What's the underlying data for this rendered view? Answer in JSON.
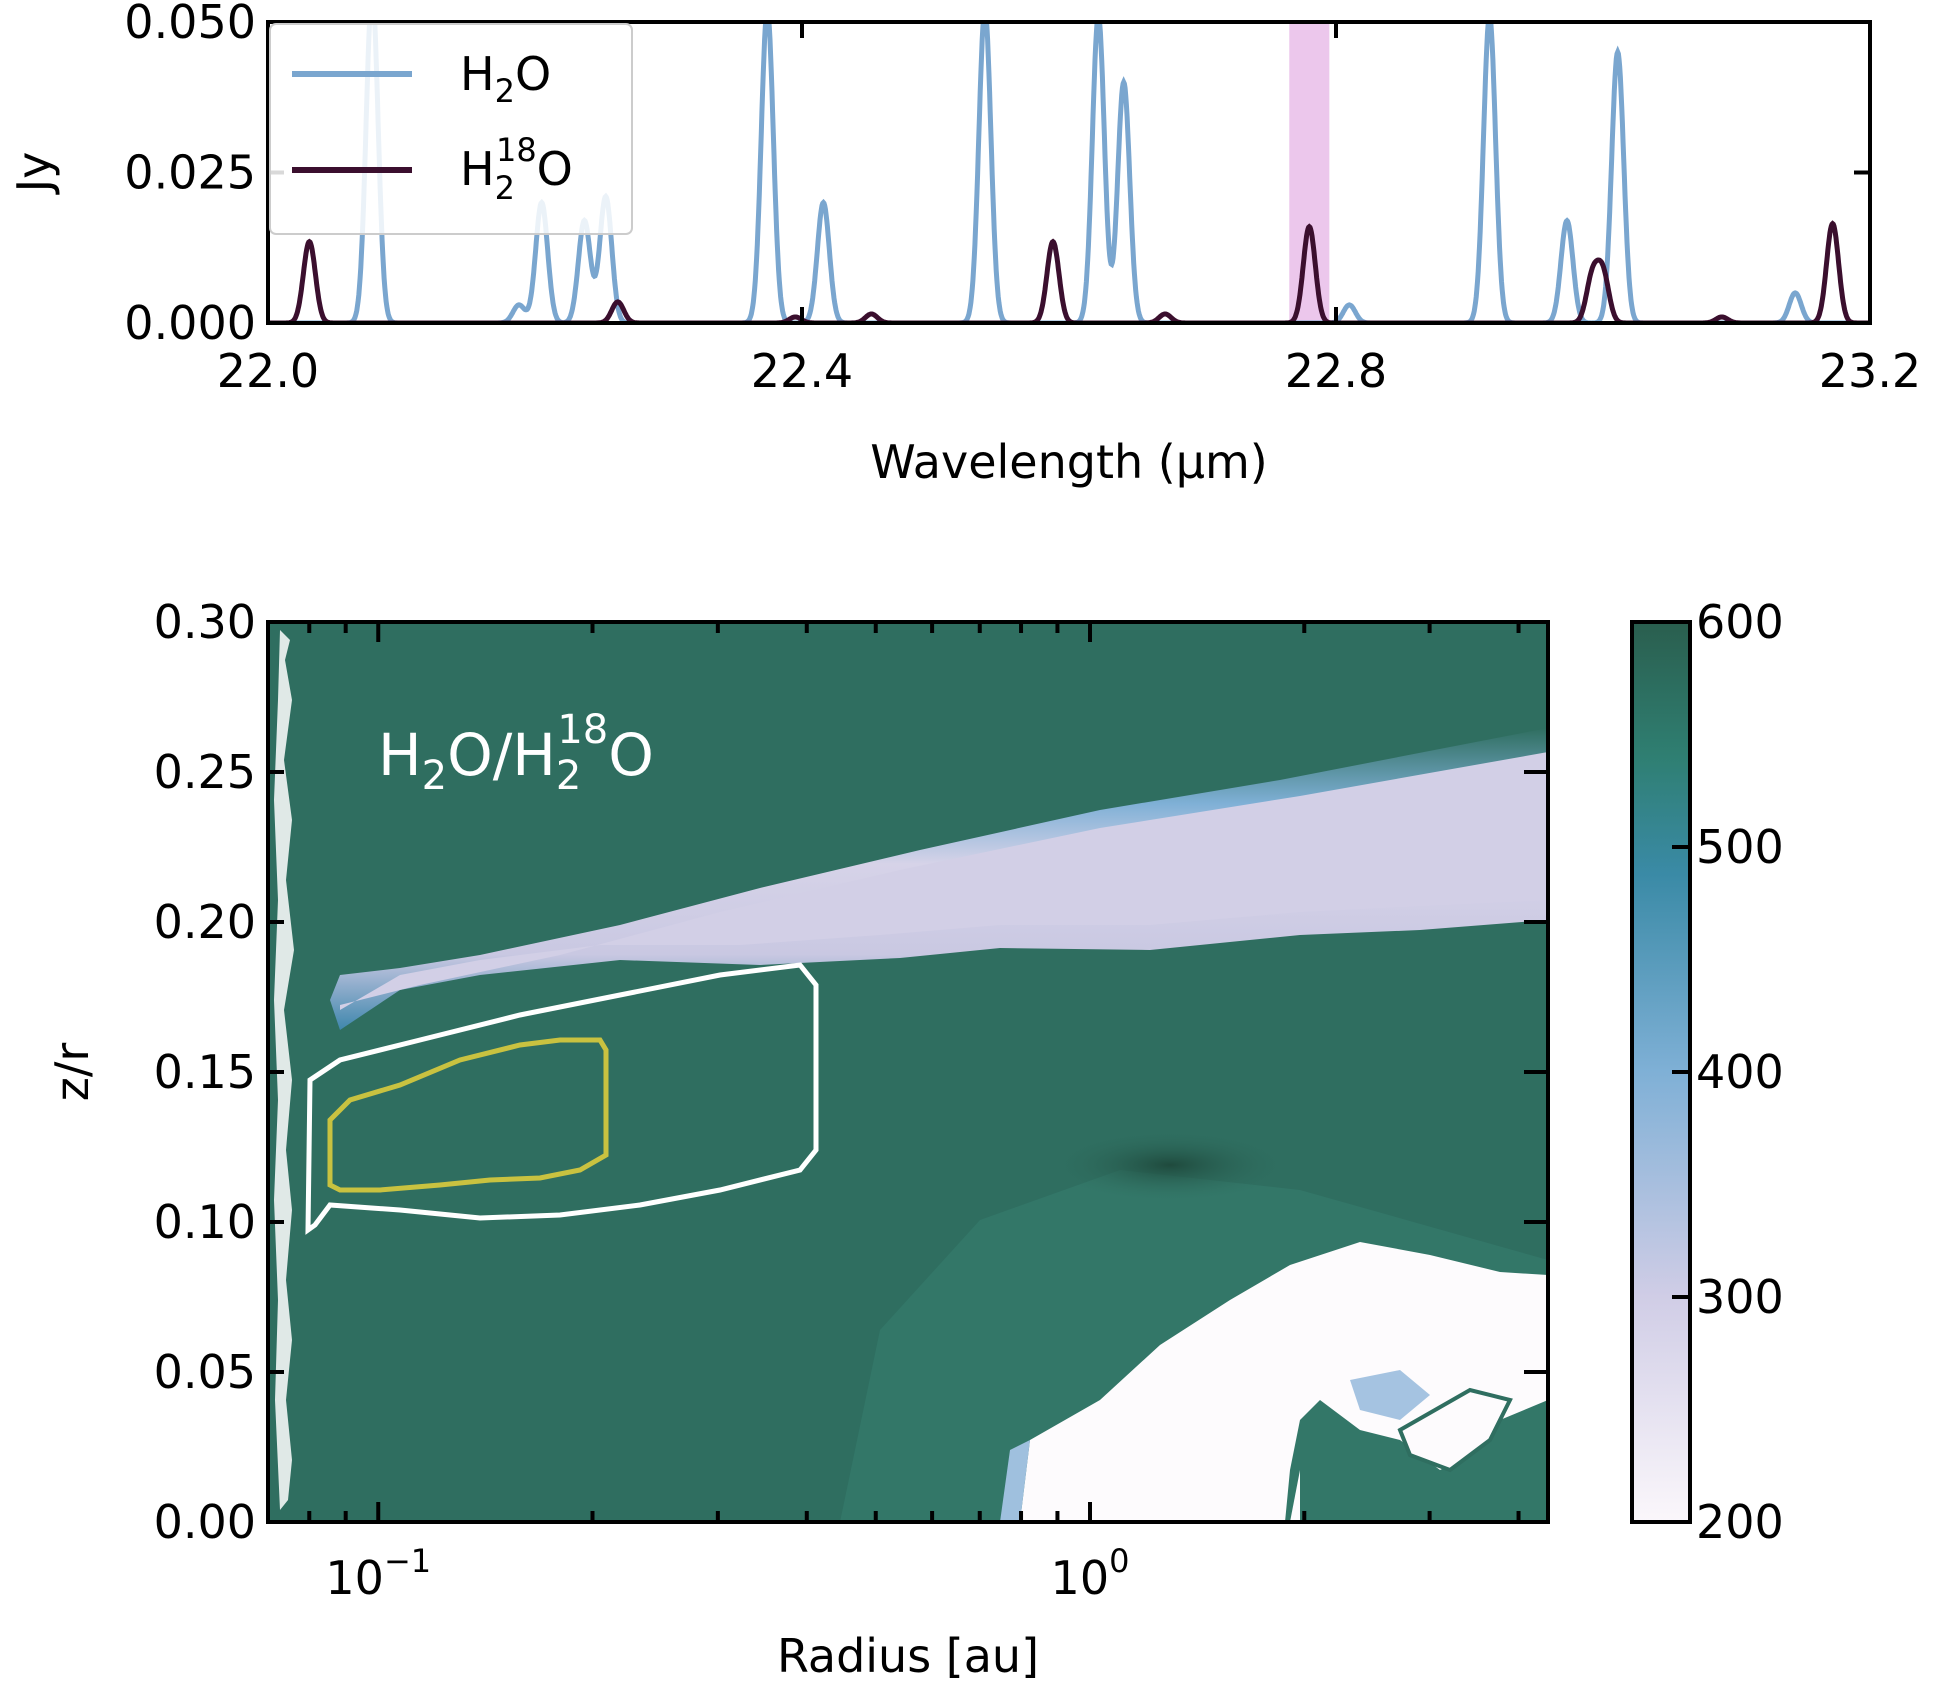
{
  "chart_data": [
    {
      "type": "line",
      "xlabel": "Wavelength (μm)",
      "ylabel": "Jy",
      "xlim": [
        22.0,
        23.2
      ],
      "ylim": [
        0.0,
        0.05
      ],
      "xticks": [
        "22.0",
        "22.4",
        "22.8",
        "23.2"
      ],
      "xtick_values": [
        22.0,
        22.4,
        22.8,
        23.2
      ],
      "yticks": [
        "0.000",
        "0.025",
        "0.050"
      ],
      "ytick_values": [
        0.0,
        0.025,
        0.05
      ],
      "highlight_band": {
        "x0": 22.765,
        "x1": 22.795,
        "color": "#ecc7ec"
      },
      "legend": {
        "placement": "upper-left"
      },
      "series": [
        {
          "name_main": "H",
          "name_sub": "2",
          "name_tail": "O",
          "color": "#7aa6cf",
          "peaks": [
            {
              "x": 22.078,
              "y": 0.055
            },
            {
              "x": 22.205,
              "y": 0.02
            },
            {
              "x": 22.237,
              "y": 0.017
            },
            {
              "x": 22.253,
              "y": 0.021
            },
            {
              "x": 22.188,
              "y": 0.003
            },
            {
              "x": 22.374,
              "y": 0.052
            },
            {
              "x": 22.416,
              "y": 0.02
            },
            {
              "x": 22.537,
              "y": 0.052
            },
            {
              "x": 22.622,
              "y": 0.051
            },
            {
              "x": 22.641,
              "y": 0.04
            },
            {
              "x": 22.81,
              "y": 0.003
            },
            {
              "x": 22.915,
              "y": 0.051
            },
            {
              "x": 22.973,
              "y": 0.017
            },
            {
              "x": 23.011,
              "y": 0.045
            },
            {
              "x": 23.144,
              "y": 0.005
            }
          ]
        },
        {
          "name_main": "H",
          "name_sub": "2",
          "name_sup": "18",
          "name_tail": "O",
          "color": "#3b0f2e",
          "peaks": [
            {
              "x": 22.031,
              "y": 0.0135
            },
            {
              "x": 22.262,
              "y": 0.0035
            },
            {
              "x": 22.395,
              "y": 0.001
            },
            {
              "x": 22.452,
              "y": 0.0015
            },
            {
              "x": 22.588,
              "y": 0.0135
            },
            {
              "x": 22.672,
              "y": 0.0015
            },
            {
              "x": 22.78,
              "y": 0.016
            },
            {
              "x": 22.992,
              "y": 0.0075
            },
            {
              "x": 23.0,
              "y": 0.008
            },
            {
              "x": 23.089,
              "y": 0.001
            },
            {
              "x": 23.172,
              "y": 0.0165
            }
          ]
        }
      ]
    },
    {
      "type": "heatmap",
      "xlabel": "Radius [au]",
      "ylabel": "z/r",
      "xscale": "log",
      "xlim": [
        0.07,
        4.4
      ],
      "ylim": [
        0.0,
        0.3
      ],
      "xtick_base": "10",
      "xticks": [
        {
          "value": 0.1,
          "exponent": "−1"
        },
        {
          "value": 1.0,
          "exponent": "0"
        }
      ],
      "yticks": [
        "0.00",
        "0.05",
        "0.10",
        "0.15",
        "0.20",
        "0.25",
        "0.30"
      ],
      "ytick_values": [
        0.0,
        0.05,
        0.1,
        0.15,
        0.2,
        0.25,
        0.3
      ],
      "annotation": {
        "main": "H",
        "sub1": "2",
        "mid": "O/H",
        "sub2": "2",
        "sup": "18",
        "tail": "O"
      },
      "colorbar": {
        "min": 200,
        "max": 600,
        "ticks": [
          "200",
          "300",
          "400",
          "500",
          "600"
        ],
        "tick_values": [
          200,
          300,
          400,
          500,
          600
        ],
        "colors": [
          "#fbf7fb",
          "#d0cde6",
          "#7fb0d6",
          "#3a8aa6",
          "#2f8a7c",
          "#2a5e4e"
        ]
      },
      "background_value": 560,
      "regions": [
        {
          "name": "upper-band",
          "value": 280,
          "description_free": true
        },
        {
          "name": "midplane-low",
          "value": 200
        },
        {
          "name": "dark-spot",
          "value": 600
        }
      ],
      "contours": [
        {
          "name": "outer",
          "color": "#ffffff"
        },
        {
          "name": "inner",
          "color": "#c9c240"
        }
      ]
    }
  ]
}
